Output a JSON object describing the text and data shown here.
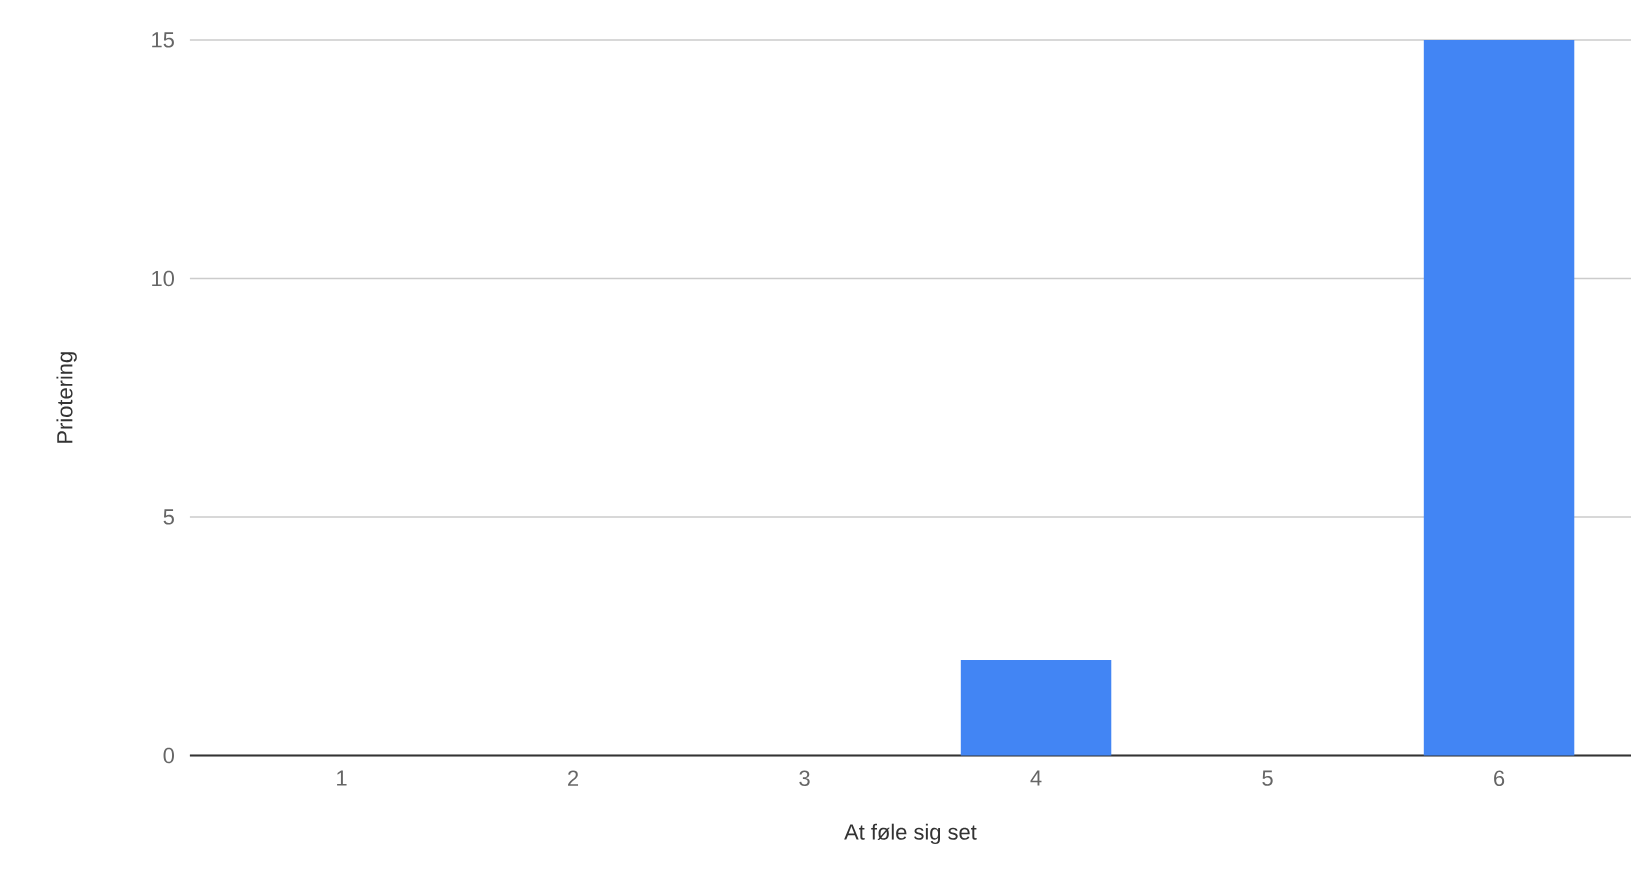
{
  "chart_data": {
    "type": "bar",
    "xlabel": "At føle sig set",
    "ylabel": "Priotering",
    "categories": [
      "1",
      "2",
      "3",
      "4",
      "5",
      "6"
    ],
    "values": [
      0,
      0,
      0,
      2,
      0,
      15
    ],
    "color": "#4285f4",
    "ylim": [
      0,
      15
    ],
    "yticks": [
      0,
      5,
      10,
      15
    ],
    "grid": "y"
  }
}
